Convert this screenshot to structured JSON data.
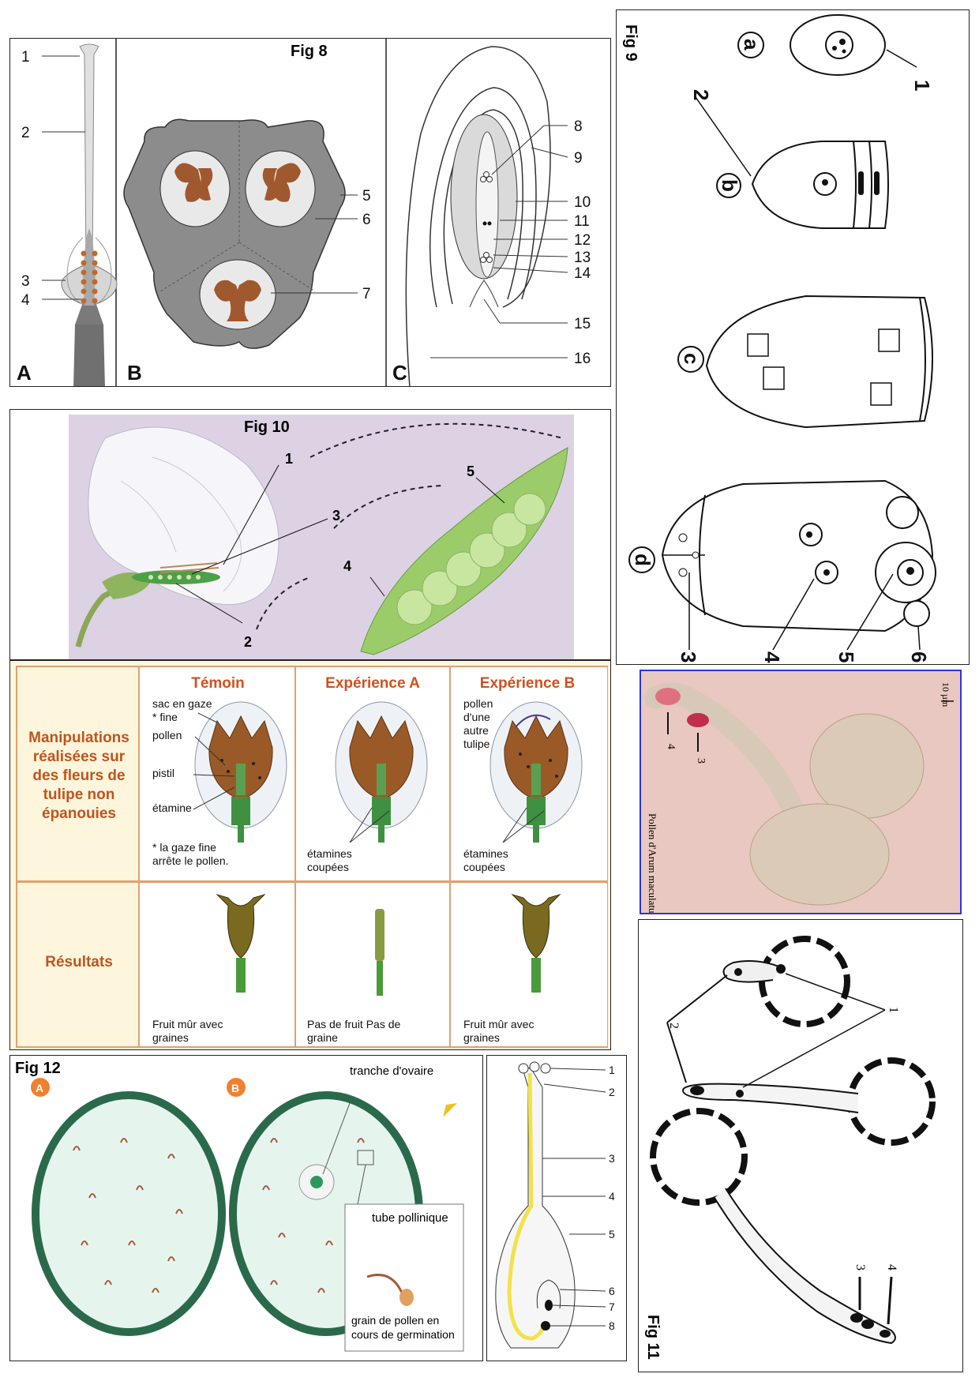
{
  "fig8": {
    "title": "Fig 8",
    "panel_letters": [
      "A",
      "B",
      "C"
    ],
    "labels": [
      "1",
      "2",
      "3",
      "4",
      "5",
      "6",
      "7",
      "8",
      "9",
      "10",
      "11",
      "12",
      "13",
      "14",
      "15",
      "16"
    ]
  },
  "fig9": {
    "title": "Fig 9",
    "stages": [
      "a",
      "b",
      "c",
      "d"
    ],
    "labels": [
      "1",
      "2",
      "3",
      "4",
      "5",
      "6"
    ]
  },
  "fig10": {
    "title": "Fig 10",
    "labels": [
      "1",
      "2",
      "3",
      "4",
      "5"
    ]
  },
  "experiment": {
    "columns": [
      "Témoin",
      "Expérience A",
      "Expérience B"
    ],
    "row_headers": [
      "Manipulations réalisées sur des fleurs de tulipe non épanouies",
      "Résultats"
    ],
    "temoin_labels": [
      "sac en gaze * fine",
      "pollen",
      "pistil",
      "étamine"
    ],
    "temoin_note": "* la gaze fine arrête le pollen.",
    "expA_label": "étamines coupées",
    "expB_labels": [
      "pollen d'une autre tulipe",
      "étamines coupées"
    ],
    "results": [
      "Fruit mûr avec graines",
      "Pas de fruit Pas de graine",
      "Fruit mûr avec graines"
    ]
  },
  "photo": {
    "scale": "10 µm",
    "caption": "Pollen d'Arum maculatum",
    "labels": [
      "4",
      "3"
    ]
  },
  "fig11": {
    "title": "Fig 11",
    "labels": [
      "1",
      "2",
      "3",
      "4"
    ]
  },
  "fig12": {
    "title": "Fig 12",
    "dish_letters": [
      "A",
      "B"
    ],
    "ovary_label": "tranche d'ovaire",
    "tube_label": "tube pollinique",
    "grain_label": "grain de pollen en cours de germination"
  },
  "pistil": {
    "labels": [
      "1",
      "2",
      "3",
      "4",
      "5",
      "6",
      "7",
      "8"
    ]
  },
  "colors": {
    "anther_brown": "#a0582e",
    "ovary_grey": "#8c8c8c",
    "header_orange": "#d2501e",
    "table_bg": "#fdf6dc",
    "photo_bg": "#e8c8c0",
    "pollen_tube_yellow": "#f1e24a"
  }
}
